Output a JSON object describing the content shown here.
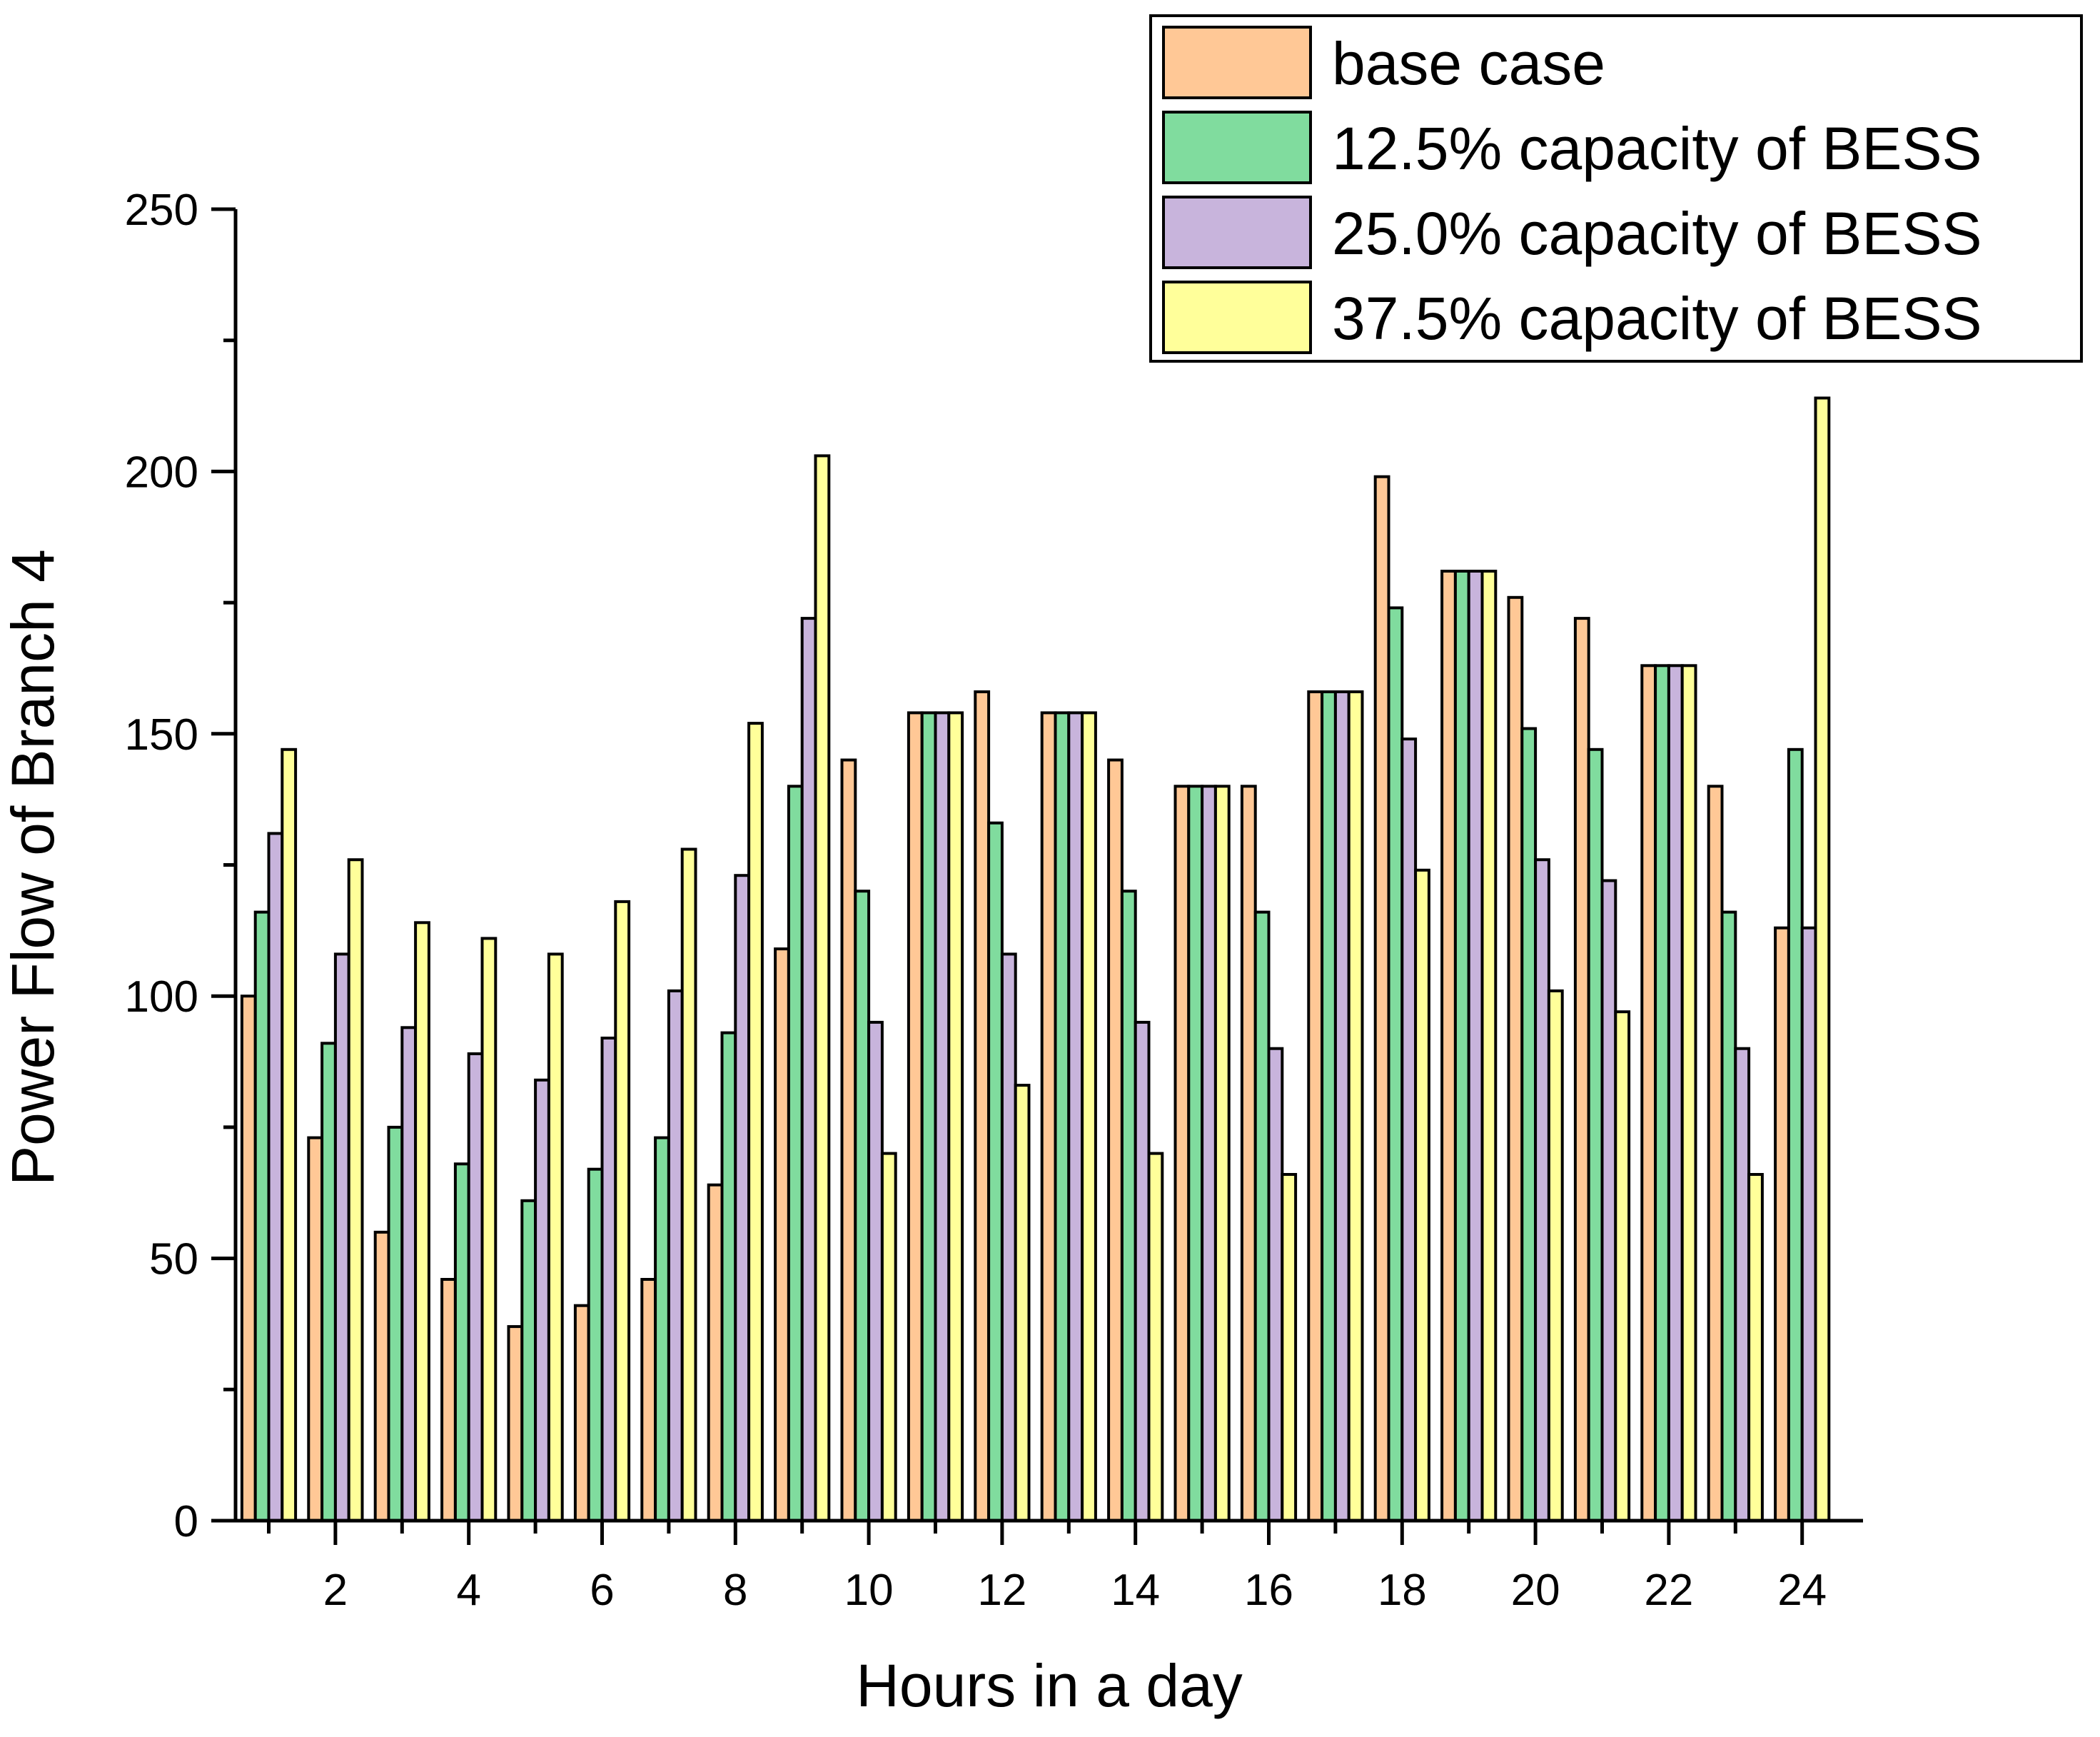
{
  "chart_data": {
    "type": "bar",
    "title": "",
    "xlabel": "Hours in a day",
    "ylabel": "Power Flow of Branch 4",
    "categories": [
      1,
      2,
      3,
      4,
      5,
      6,
      7,
      8,
      9,
      10,
      11,
      12,
      13,
      14,
      15,
      16,
      17,
      18,
      19,
      20,
      21,
      22,
      23,
      24
    ],
    "x_tick_labels": [
      "2",
      "4",
      "6",
      "8",
      "10",
      "12",
      "14",
      "16",
      "18",
      "20",
      "22",
      "24"
    ],
    "ylim": [
      0,
      250
    ],
    "y_ticks": [
      0,
      50,
      100,
      150,
      200,
      250
    ],
    "y_tick_labels": [
      "0",
      "50",
      "100",
      "150",
      "200",
      "250"
    ],
    "grid": false,
    "legend_position": "top-right",
    "series": [
      {
        "name": "base case",
        "color": "#ffc896",
        "values": [
          100,
          73,
          55,
          46,
          37,
          41,
          46,
          64,
          109,
          145,
          154,
          158,
          154,
          145,
          140,
          140,
          158,
          199,
          181,
          176,
          172,
          163,
          140,
          113
        ]
      },
      {
        "name": "12.5% capacity of BESS",
        "color": "#80dc9e",
        "values": [
          116,
          91,
          75,
          68,
          61,
          67,
          73,
          93,
          140,
          120,
          154,
          133,
          154,
          120,
          140,
          116,
          158,
          174,
          181,
          151,
          147,
          163,
          116,
          147
        ]
      },
      {
        "name": "25.0% capacity of BESS",
        "color": "#c8b4dc",
        "values": [
          131,
          108,
          94,
          89,
          84,
          92,
          101,
          123,
          172,
          95,
          154,
          108,
          154,
          95,
          140,
          90,
          158,
          149,
          181,
          126,
          122,
          163,
          90,
          113
        ]
      },
      {
        "name": "37.5% capacity of BESS",
        "color": "#ffff9a",
        "values": [
          147,
          126,
          114,
          111,
          108,
          118,
          128,
          152,
          203,
          70,
          154,
          83,
          154,
          70,
          140,
          66,
          158,
          124,
          181,
          101,
          97,
          163,
          66,
          214
        ]
      }
    ]
  }
}
